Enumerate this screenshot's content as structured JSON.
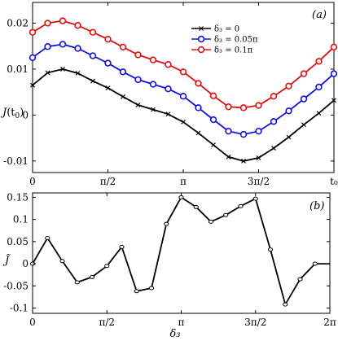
{
  "chart_data": [
    {
      "type": "line",
      "panel_label": "(a)",
      "ylabel_main": "J",
      "ylabel_sub": "(t",
      "ylabel_sub2": "0",
      "ylabel_end": ")",
      "xlim": [
        0,
        1
      ],
      "ylim": [
        -0.0125,
        0.0245
      ],
      "yticks": [
        -0.01,
        0,
        0.01,
        0.02
      ],
      "ytick_labels": [
        "-0.01",
        "0",
        "0.01",
        "0.02"
      ],
      "xticks": [
        0,
        0.25,
        0.5,
        0.75,
        1
      ],
      "xtick_labels": [
        "0",
        "π/2",
        "π",
        "3π/2",
        "t₀"
      ],
      "x": [
        0,
        0.05,
        0.1,
        0.15,
        0.2,
        0.25,
        0.3,
        0.35,
        0.4,
        0.45,
        0.5,
        0.55,
        0.6,
        0.65,
        0.7,
        0.75,
        0.8,
        0.85,
        0.9,
        0.95,
        1.0
      ],
      "series": [
        {
          "name": "δ₃ = 0",
          "color": "#000000",
          "marker": "x",
          "values": [
            0.0065,
            0.0092,
            0.01,
            0.0091,
            0.0074,
            0.0059,
            0.004,
            0.0022,
            0.0012,
            0.0002,
            -0.0015,
            -0.0039,
            -0.0065,
            -0.0091,
            -0.01,
            -0.0093,
            -0.0072,
            -0.0048,
            -0.0021,
            0.0004,
            0.0032
          ]
        },
        {
          "name": "δ₃ = 0.05π",
          "color": "#1010e0",
          "marker": "o",
          "values": [
            0.0125,
            0.0149,
            0.0154,
            0.0145,
            0.0129,
            0.0113,
            0.0094,
            0.0077,
            0.0067,
            0.0057,
            0.0041,
            0.0016,
            -0.001,
            -0.0035,
            -0.0042,
            -0.0035,
            -0.0014,
            0.0009,
            0.0035,
            0.0061,
            0.009
          ]
        },
        {
          "name": "δ₃ = 0.1π",
          "color": "#e01010",
          "marker": "o",
          "values": [
            0.018,
            0.02,
            0.0205,
            0.0195,
            0.018,
            0.0165,
            0.0148,
            0.0131,
            0.012,
            0.011,
            0.0094,
            0.0069,
            0.0042,
            0.0018,
            0.0016,
            0.0021,
            0.0041,
            0.0063,
            0.009,
            0.0117,
            0.0148
          ]
        }
      ]
    },
    {
      "type": "line",
      "panel_label": "(b)",
      "ylabel": "J̃",
      "xlabel": "δ₃",
      "xlim": [
        0,
        2
      ],
      "ylim": [
        -0.112,
        0.16
      ],
      "yticks": [
        -0.1,
        -0.05,
        0,
        0.05,
        0.1,
        0.15
      ],
      "ytick_labels": [
        "-0.1",
        "-0.05",
        "0",
        "0.05",
        "0.1",
        "0.15"
      ],
      "xticks": [
        0,
        0.5,
        1,
        1.5,
        2
      ],
      "xtick_labels": [
        "0",
        "π/2",
        "π",
        "3π/2",
        "2π"
      ],
      "x": [
        0,
        0.1,
        0.2,
        0.3,
        0.4,
        0.5,
        0.6,
        0.7,
        0.8,
        0.9,
        1.0,
        1.1,
        1.2,
        1.3,
        1.4,
        1.5,
        1.6,
        1.7,
        1.8,
        1.9,
        2.0
      ],
      "series": [
        {
          "color": "#000000",
          "marker": "o",
          "values": [
            0.0,
            0.058,
            0.006,
            -0.042,
            -0.03,
            -0.005,
            0.038,
            -0.062,
            -0.055,
            0.09,
            0.15,
            0.128,
            0.095,
            0.11,
            0.13,
            0.147,
            0.032,
            -0.092,
            -0.035,
            0.0,
            0.0
          ]
        }
      ]
    }
  ]
}
